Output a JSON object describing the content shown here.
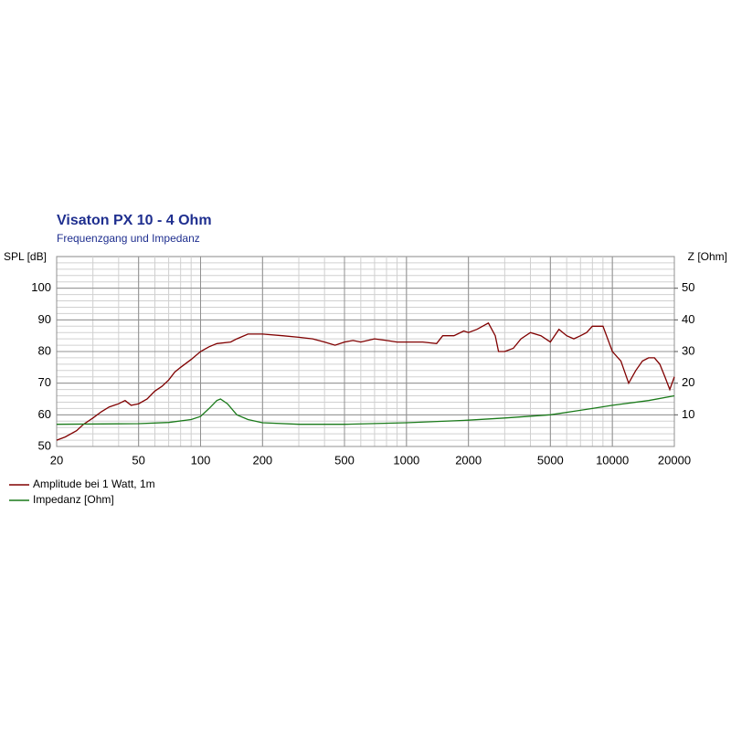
{
  "chart_data": {
    "type": "line",
    "title": "Visaton PX 10 - 4 Ohm",
    "subtitle": "Frequenzgang und Impedanz",
    "y_label": "SPL [dB]",
    "y2_label": "Z [Ohm]",
    "log_x": true,
    "grid": true,
    "xlim": [
      20,
      20000
    ],
    "xticks": [
      20,
      50,
      100,
      200,
      500,
      1000,
      2000,
      5000,
      10000,
      20000
    ],
    "ylim": [
      50,
      110
    ],
    "yticks": [
      50,
      60,
      70,
      80,
      90,
      100
    ],
    "y2lim": [
      0,
      60
    ],
    "y2ticks": [
      10,
      20,
      30,
      40,
      50
    ],
    "series": [
      {
        "name": "Amplitude bei 1 Watt, 1m",
        "color": "#800000",
        "x": [
          20,
          22,
          25,
          27,
          30,
          33,
          36,
          40,
          43,
          46,
          50,
          55,
          60,
          65,
          70,
          75,
          80,
          90,
          100,
          110,
          120,
          140,
          150,
          170,
          200,
          250,
          300,
          350,
          400,
          450,
          500,
          550,
          600,
          700,
          800,
          900,
          1000,
          1200,
          1400,
          1500,
          1700,
          1900,
          2000,
          2200,
          2500,
          2700,
          2800,
          3000,
          3300,
          3600,
          4000,
          4500,
          5000,
          5500,
          6000,
          6500,
          7000,
          7500,
          8000,
          9000,
          10000,
          11000,
          12000,
          13000,
          14000,
          15000,
          16000,
          17000,
          18000,
          19000,
          20000
        ],
        "values": [
          52,
          53,
          55,
          57,
          59,
          61,
          62.5,
          63.5,
          64.5,
          63,
          63.5,
          65,
          67.5,
          69,
          71,
          73.5,
          75,
          77.5,
          80,
          81.5,
          82.5,
          83,
          84,
          85.5,
          85.5,
          85,
          84.5,
          84,
          83,
          82,
          83,
          83.5,
          83,
          84,
          83.5,
          83,
          83,
          83,
          82.5,
          85,
          85,
          86.5,
          86,
          87,
          89,
          85,
          80,
          80,
          81,
          84,
          86,
          85,
          83,
          87,
          85,
          84,
          85,
          86,
          88,
          88,
          80,
          77,
          70,
          74,
          77,
          78,
          78,
          76,
          72,
          68,
          72
        ]
      },
      {
        "name": "Impedanz [Ohm]",
        "color": "#1a7a1a",
        "axis": "y2",
        "x": [
          20,
          50,
          70,
          90,
          100,
          110,
          120,
          125,
          135,
          150,
          170,
          200,
          300,
          500,
          1000,
          2000,
          3000,
          5000,
          8000,
          10000,
          15000,
          20000
        ],
        "values": [
          7,
          7.2,
          7.6,
          8.5,
          9.5,
          12,
          14.5,
          15,
          13.5,
          10,
          8.5,
          7.5,
          7,
          7,
          7.5,
          8.3,
          9,
          10,
          12,
          13,
          14.5,
          16
        ]
      }
    ]
  }
}
